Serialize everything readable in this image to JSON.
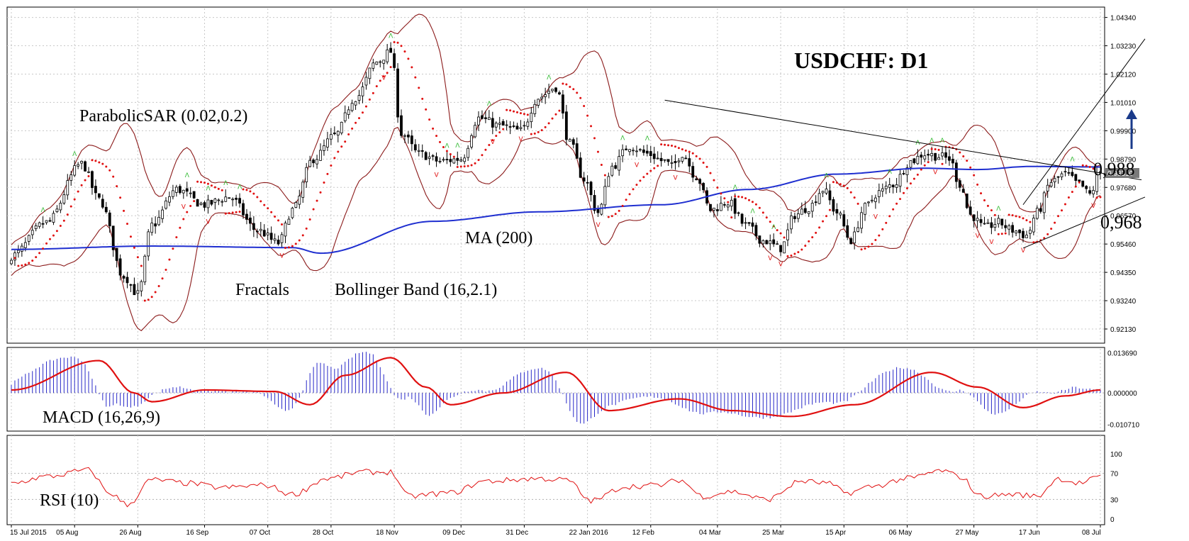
{
  "chart_data": {
    "type": "candlestick",
    "title": "USDCHF: D1",
    "current_price": "0.98310",
    "x_labels": [
      "15 Jul 2015",
      "05 Aug",
      "26 Aug",
      "16 Sep",
      "07 Oct",
      "28 Oct",
      "18 Nov",
      "09 Dec",
      "31 Dec",
      "22 Jan 2016",
      "12 Feb",
      "04 Mar",
      "25 Mar",
      "15 Apr",
      "06 May",
      "27 May",
      "17 Jun",
      "08 Jul"
    ],
    "price_axis": {
      "ticks": [
        "1.04340",
        "1.03230",
        "1.02120",
        "1.01010",
        "0.99900",
        "0.98790",
        "0.97680",
        "0.96570",
        "0.95460",
        "0.94350",
        "0.93240",
        "0.92130"
      ],
      "ylim": [
        0.9163,
        1.0469
      ]
    },
    "price_keypoints": [
      {
        "i": 0,
        "p": 0.95
      },
      {
        "i": 10,
        "p": 0.963
      },
      {
        "i": 20,
        "p": 0.986
      },
      {
        "i": 25,
        "p": 0.972
      },
      {
        "i": 32,
        "p": 0.942
      },
      {
        "i": 36,
        "p": 0.935
      },
      {
        "i": 40,
        "p": 0.962
      },
      {
        "i": 47,
        "p": 0.976
      },
      {
        "i": 55,
        "p": 0.97
      },
      {
        "i": 62,
        "p": 0.973
      },
      {
        "i": 70,
        "p": 0.96
      },
      {
        "i": 76,
        "p": 0.955
      },
      {
        "i": 80,
        "p": 0.968
      },
      {
        "i": 86,
        "p": 0.988
      },
      {
        "i": 92,
        "p": 0.997
      },
      {
        "i": 98,
        "p": 1.012
      },
      {
        "i": 104,
        "p": 1.026
      },
      {
        "i": 108,
        "p": 1.03
      },
      {
        "i": 111,
        "p": 0.998
      },
      {
        "i": 116,
        "p": 0.99
      },
      {
        "i": 122,
        "p": 0.987
      },
      {
        "i": 128,
        "p": 0.988
      },
      {
        "i": 133,
        "p": 1.004
      },
      {
        "i": 139,
        "p": 1.001
      },
      {
        "i": 145,
        "p": 0.999
      },
      {
        "i": 150,
        "p": 1.012
      },
      {
        "i": 155,
        "p": 1.016
      },
      {
        "i": 159,
        "p": 0.994
      },
      {
        "i": 163,
        "p": 0.98
      },
      {
        "i": 167,
        "p": 0.967
      },
      {
        "i": 171,
        "p": 0.985
      },
      {
        "i": 176,
        "p": 0.993
      },
      {
        "i": 181,
        "p": 0.99
      },
      {
        "i": 186,
        "p": 0.987
      },
      {
        "i": 188,
        "p": 0.985
      },
      {
        "i": 191,
        "p": 0.99
      },
      {
        "i": 195,
        "p": 0.981
      },
      {
        "i": 199,
        "p": 0.968
      },
      {
        "i": 204,
        "p": 0.971
      },
      {
        "i": 209,
        "p": 0.962
      },
      {
        "i": 214,
        "p": 0.956
      },
      {
        "i": 219,
        "p": 0.953
      },
      {
        "i": 223,
        "p": 0.966
      },
      {
        "i": 227,
        "p": 0.969
      },
      {
        "i": 231,
        "p": 0.976
      },
      {
        "i": 235,
        "p": 0.967
      },
      {
        "i": 239,
        "p": 0.956
      },
      {
        "i": 243,
        "p": 0.969
      },
      {
        "i": 247,
        "p": 0.975
      },
      {
        "i": 251,
        "p": 0.978
      },
      {
        "i": 256,
        "p": 0.987
      },
      {
        "i": 260,
        "p": 0.99
      },
      {
        "i": 264,
        "p": 0.989
      },
      {
        "i": 267,
        "p": 0.988
      },
      {
        "i": 270,
        "p": 0.978
      },
      {
        "i": 273,
        "p": 0.966
      },
      {
        "i": 277,
        "p": 0.961
      },
      {
        "i": 281,
        "p": 0.963
      },
      {
        "i": 285,
        "p": 0.96
      },
      {
        "i": 289,
        "p": 0.958
      },
      {
        "i": 292,
        "p": 0.967
      },
      {
        "i": 296,
        "p": 0.979
      },
      {
        "i": 300,
        "p": 0.982
      },
      {
        "i": 304,
        "p": 0.978
      },
      {
        "i": 307,
        "p": 0.974
      },
      {
        "i": 310,
        "p": 0.983
      }
    ],
    "ma200_keypoints": [
      {
        "i": 0,
        "p": 0.9525
      },
      {
        "i": 40,
        "p": 0.9538
      },
      {
        "i": 80,
        "p": 0.9532
      },
      {
        "i": 88,
        "p": 0.951
      },
      {
        "i": 120,
        "p": 0.9635
      },
      {
        "i": 150,
        "p": 0.9672
      },
      {
        "i": 185,
        "p": 0.97
      },
      {
        "i": 210,
        "p": 0.976
      },
      {
        "i": 235,
        "p": 0.982
      },
      {
        "i": 260,
        "p": 0.9843
      },
      {
        "i": 275,
        "p": 0.9838
      },
      {
        "i": 290,
        "p": 0.985
      },
      {
        "i": 310,
        "p": 0.9848
      }
    ],
    "macd_axis": {
      "ticks": [
        "0.013690",
        "0.000000",
        "-0.010710"
      ],
      "ylim": [
        -0.0125,
        0.015
      ]
    },
    "macd_keypoints": [
      {
        "i": 0,
        "v": 0.001
      },
      {
        "i": 25,
        "v": 0.011
      },
      {
        "i": 35,
        "v": 0.0
      },
      {
        "i": 40,
        "v": -0.003
      },
      {
        "i": 55,
        "v": 0.001
      },
      {
        "i": 75,
        "v": 0.0005
      },
      {
        "i": 85,
        "v": -0.004
      },
      {
        "i": 95,
        "v": 0.006
      },
      {
        "i": 108,
        "v": 0.012
      },
      {
        "i": 118,
        "v": 0.002
      },
      {
        "i": 125,
        "v": -0.004
      },
      {
        "i": 140,
        "v": 0.0
      },
      {
        "i": 158,
        "v": 0.007
      },
      {
        "i": 170,
        "v": -0.006
      },
      {
        "i": 190,
        "v": -0.002
      },
      {
        "i": 205,
        "v": -0.006
      },
      {
        "i": 222,
        "v": -0.008
      },
      {
        "i": 240,
        "v": -0.004
      },
      {
        "i": 262,
        "v": 0.007
      },
      {
        "i": 275,
        "v": 0.002
      },
      {
        "i": 288,
        "v": -0.005
      },
      {
        "i": 300,
        "v": -0.001
      },
      {
        "i": 310,
        "v": 0.001
      }
    ],
    "rsi_axis": {
      "ticks": [
        "100",
        "70",
        "30",
        "0"
      ],
      "ylim": [
        0,
        100
      ]
    },
    "rsi_keypoints": [
      {
        "i": 0,
        "v": 55
      },
      {
        "i": 10,
        "v": 65
      },
      {
        "i": 22,
        "v": 75
      },
      {
        "i": 28,
        "v": 40
      },
      {
        "i": 33,
        "v": 22
      },
      {
        "i": 40,
        "v": 60
      },
      {
        "i": 50,
        "v": 55
      },
      {
        "i": 60,
        "v": 48
      },
      {
        "i": 72,
        "v": 52
      },
      {
        "i": 80,
        "v": 38
      },
      {
        "i": 90,
        "v": 62
      },
      {
        "i": 100,
        "v": 72
      },
      {
        "i": 108,
        "v": 72
      },
      {
        "i": 113,
        "v": 35
      },
      {
        "i": 125,
        "v": 40
      },
      {
        "i": 135,
        "v": 58
      },
      {
        "i": 150,
        "v": 62
      },
      {
        "i": 158,
        "v": 60
      },
      {
        "i": 165,
        "v": 28
      },
      {
        "i": 175,
        "v": 50
      },
      {
        "i": 185,
        "v": 52
      },
      {
        "i": 190,
        "v": 60
      },
      {
        "i": 197,
        "v": 35
      },
      {
        "i": 205,
        "v": 42
      },
      {
        "i": 215,
        "v": 30
      },
      {
        "i": 225,
        "v": 58
      },
      {
        "i": 232,
        "v": 55
      },
      {
        "i": 238,
        "v": 40
      },
      {
        "i": 245,
        "v": 50
      },
      {
        "i": 255,
        "v": 62
      },
      {
        "i": 265,
        "v": 74
      },
      {
        "i": 270,
        "v": 65
      },
      {
        "i": 276,
        "v": 35
      },
      {
        "i": 285,
        "v": 38
      },
      {
        "i": 292,
        "v": 35
      },
      {
        "i": 298,
        "v": 62
      },
      {
        "i": 304,
        "v": 55
      },
      {
        "i": 310,
        "v": 64
      }
    ]
  },
  "annotations": {
    "sar": "ParabolicSAR (0.02,0.2)",
    "fractals": "Fractals",
    "bollinger": "Bollinger Band (16,2.1)",
    "ma": "MA (200)",
    "macd": "MACD (16,26,9)",
    "rsi": "RSI (10)",
    "level_high": "0,988",
    "level_low": "0,968"
  },
  "colors": {
    "bull": "#ffffff",
    "bear": "#000000",
    "bollinger": "#8b1a1a",
    "sar": "#e01010",
    "ma": "#1f2fd0",
    "fractal_up": "#33bb33",
    "fractal_down": "#e01010",
    "macd_hist": "#2828c8",
    "macd_signal": "#e01010",
    "rsi": "#e01010",
    "arrow": "#1a3a8a",
    "grid": "#c8c8c8"
  }
}
